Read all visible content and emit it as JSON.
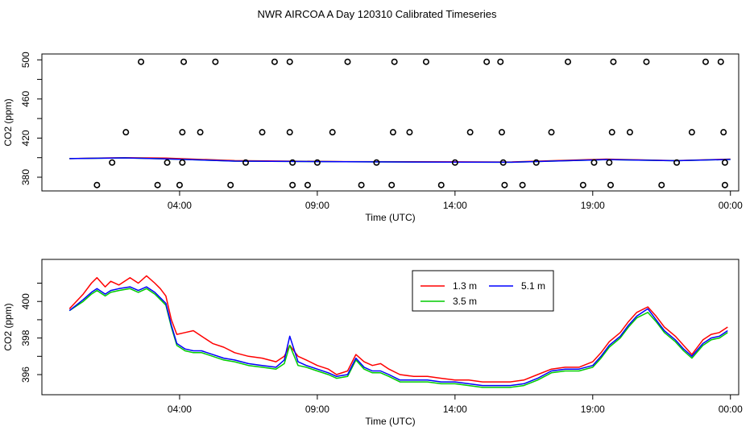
{
  "title": "NWR AIRCOA A  Day 120310  Calibrated Timeseries",
  "chart_data": [
    {
      "type": "scatter+line",
      "name": "top-panel",
      "xlabel": "Time (UTC)",
      "ylabel": "CO2 (ppm)",
      "xlim": [
        -1.0,
        24.3
      ],
      "ylim": [
        366,
        506
      ],
      "x_ticks": [
        4,
        9,
        14,
        19,
        24
      ],
      "x_tick_labels": [
        "04:00",
        "09:00",
        "14:00",
        "19:00",
        "00:00"
      ],
      "y_ticks": [
        380,
        400,
        420,
        440,
        460,
        480,
        500
      ],
      "y_tick_labels": [
        "380",
        "",
        "420",
        "",
        "460",
        "",
        "500"
      ],
      "points": [
        {
          "x": 1.0,
          "y": 372
        },
        {
          "x": 1.55,
          "y": 395
        },
        {
          "x": 2.05,
          "y": 426
        },
        {
          "x": 2.6,
          "y": 498
        },
        {
          "x": 3.2,
          "y": 372
        },
        {
          "x": 3.55,
          "y": 395
        },
        {
          "x": 4.0,
          "y": 372
        },
        {
          "x": 4.1,
          "y": 395
        },
        {
          "x": 4.1,
          "y": 426
        },
        {
          "x": 4.15,
          "y": 498
        },
        {
          "x": 4.75,
          "y": 426
        },
        {
          "x": 5.3,
          "y": 498
        },
        {
          "x": 5.85,
          "y": 372
        },
        {
          "x": 6.4,
          "y": 395
        },
        {
          "x": 7.0,
          "y": 426
        },
        {
          "x": 7.45,
          "y": 498
        },
        {
          "x": 8.0,
          "y": 426
        },
        {
          "x": 8.0,
          "y": 498
        },
        {
          "x": 8.1,
          "y": 395
        },
        {
          "x": 8.1,
          "y": 372
        },
        {
          "x": 8.65,
          "y": 372
        },
        {
          "x": 9.0,
          "y": 395
        },
        {
          "x": 9.55,
          "y": 426
        },
        {
          "x": 10.1,
          "y": 498
        },
        {
          "x": 10.6,
          "y": 372
        },
        {
          "x": 11.15,
          "y": 395
        },
        {
          "x": 11.7,
          "y": 372
        },
        {
          "x": 11.75,
          "y": 426
        },
        {
          "x": 11.8,
          "y": 498
        },
        {
          "x": 12.35,
          "y": 426
        },
        {
          "x": 12.95,
          "y": 498
        },
        {
          "x": 13.5,
          "y": 372
        },
        {
          "x": 14.0,
          "y": 395
        },
        {
          "x": 14.55,
          "y": 426
        },
        {
          "x": 15.15,
          "y": 498
        },
        {
          "x": 15.65,
          "y": 498
        },
        {
          "x": 15.7,
          "y": 426
        },
        {
          "x": 15.75,
          "y": 395
        },
        {
          "x": 15.8,
          "y": 372
        },
        {
          "x": 16.45,
          "y": 372
        },
        {
          "x": 16.95,
          "y": 395
        },
        {
          "x": 17.5,
          "y": 426
        },
        {
          "x": 18.1,
          "y": 498
        },
        {
          "x": 18.65,
          "y": 372
        },
        {
          "x": 19.05,
          "y": 395
        },
        {
          "x": 19.6,
          "y": 395
        },
        {
          "x": 19.65,
          "y": 372
        },
        {
          "x": 19.7,
          "y": 426
        },
        {
          "x": 19.75,
          "y": 498
        },
        {
          "x": 20.35,
          "y": 426
        },
        {
          "x": 20.95,
          "y": 498
        },
        {
          "x": 21.5,
          "y": 372
        },
        {
          "x": 22.05,
          "y": 395
        },
        {
          "x": 22.6,
          "y": 426
        },
        {
          "x": 23.1,
          "y": 498
        },
        {
          "x": 23.65,
          "y": 498
        },
        {
          "x": 23.75,
          "y": 426
        },
        {
          "x": 23.8,
          "y": 395
        },
        {
          "x": 23.8,
          "y": 372
        }
      ],
      "series": [
        {
          "name": "1.3 m",
          "color": "#ff0000",
          "x": [
            0,
            2,
            3.5,
            6,
            10,
            14,
            16,
            19.5,
            22,
            24
          ],
          "values": [
            399,
            400,
            399.5,
            397,
            396,
            395.7,
            395.6,
            398.5,
            397,
            398.5
          ]
        },
        {
          "name": "3.5 m",
          "color": "#00cc00",
          "x": [
            0,
            2,
            3.5,
            6,
            10,
            14,
            16,
            19.5,
            22,
            24
          ],
          "values": [
            399,
            399.8,
            398.8,
            396.5,
            395.8,
            395.4,
            395.3,
            398,
            396.9,
            398.2
          ]
        },
        {
          "name": "5.1 m",
          "color": "#0000ff",
          "x": [
            0,
            2,
            3.5,
            6,
            10,
            14,
            16,
            19.5,
            22,
            24
          ],
          "values": [
            399,
            399.8,
            398.8,
            396.5,
            395.8,
            395.4,
            395.3,
            398,
            396.9,
            398.2
          ]
        }
      ]
    },
    {
      "type": "line",
      "name": "bottom-panel",
      "xlabel": "Time (UTC)",
      "ylabel": "CO2 (ppm)",
      "xlim": [
        -1.0,
        24.3
      ],
      "ylim": [
        394.9,
        402.3
      ],
      "x_ticks": [
        4,
        9,
        14,
        19,
        24
      ],
      "x_tick_labels": [
        "04:00",
        "09:00",
        "14:00",
        "19:00",
        "00:00"
      ],
      "y_ticks": [
        396,
        397,
        398,
        399,
        400,
        401
      ],
      "y_tick_labels": [
        "396",
        "",
        "398",
        "",
        "400",
        ""
      ],
      "legend": {
        "position": "top-center",
        "entries": [
          "1.3 m",
          "3.5 m",
          "5.1 m"
        ]
      },
      "series": [
        {
          "name": "1.3 m",
          "color": "#ff0000",
          "x": [
            0,
            0.5,
            0.8,
            1.0,
            1.3,
            1.5,
            1.8,
            2.2,
            2.5,
            2.8,
            3.1,
            3.3,
            3.5,
            3.7,
            3.9,
            4.2,
            4.5,
            4.8,
            5.2,
            5.6,
            6.0,
            6.5,
            7.0,
            7.5,
            7.8,
            8.0,
            8.3,
            8.6,
            9.0,
            9.4,
            9.7,
            10.1,
            10.4,
            10.7,
            11.0,
            11.3,
            11.6,
            12.0,
            12.5,
            13.0,
            13.5,
            14.0,
            14.5,
            15.0,
            15.5,
            16.0,
            16.5,
            17.0,
            17.5,
            18.0,
            18.5,
            19.0,
            19.3,
            19.6,
            20.0,
            20.3,
            20.6,
            21.0,
            21.3,
            21.6,
            22.0,
            22.3,
            22.6,
            23.0,
            23.3,
            23.6,
            23.9
          ],
          "values": [
            399.6,
            400.4,
            401.0,
            401.3,
            400.8,
            401.1,
            400.9,
            401.3,
            401.0,
            401.4,
            401.0,
            400.7,
            400.3,
            399.0,
            398.2,
            398.3,
            398.4,
            398.1,
            397.7,
            397.5,
            397.2,
            397.0,
            396.9,
            396.7,
            397.0,
            397.6,
            397.0,
            396.8,
            396.5,
            396.3,
            396.0,
            396.2,
            397.1,
            396.7,
            396.5,
            396.6,
            396.3,
            396.0,
            395.9,
            395.9,
            395.8,
            395.7,
            395.7,
            395.6,
            395.6,
            395.6,
            395.7,
            396.0,
            396.3,
            396.4,
            396.4,
            396.7,
            397.2,
            397.8,
            398.3,
            398.9,
            399.4,
            399.7,
            399.2,
            398.6,
            398.1,
            397.6,
            397.1,
            397.9,
            398.2,
            398.3,
            398.6
          ]
        },
        {
          "name": "3.5 m",
          "color": "#00cc00",
          "x": [
            0,
            0.5,
            0.8,
            1.0,
            1.3,
            1.5,
            1.8,
            2.2,
            2.5,
            2.8,
            3.1,
            3.3,
            3.5,
            3.7,
            3.9,
            4.2,
            4.5,
            4.8,
            5.2,
            5.6,
            6.0,
            6.5,
            7.0,
            7.5,
            7.8,
            8.0,
            8.3,
            8.6,
            9.0,
            9.4,
            9.7,
            10.1,
            10.4,
            10.7,
            11.0,
            11.3,
            11.6,
            12.0,
            12.5,
            13.0,
            13.5,
            14.0,
            14.5,
            15.0,
            15.5,
            16.0,
            16.5,
            17.0,
            17.5,
            18.0,
            18.5,
            19.0,
            19.3,
            19.6,
            20.0,
            20.3,
            20.6,
            21.0,
            21.3,
            21.6,
            22.0,
            22.3,
            22.6,
            23.0,
            23.3,
            23.6,
            23.9
          ],
          "values": [
            399.5,
            400.0,
            400.4,
            400.6,
            400.3,
            400.5,
            400.6,
            400.7,
            400.5,
            400.7,
            400.4,
            400.1,
            399.8,
            398.6,
            397.6,
            397.3,
            397.2,
            397.2,
            397.0,
            396.8,
            396.7,
            396.5,
            396.4,
            396.3,
            396.6,
            397.6,
            396.5,
            396.4,
            396.2,
            396.0,
            395.8,
            395.9,
            396.8,
            396.3,
            396.1,
            396.1,
            395.9,
            395.6,
            395.6,
            395.6,
            395.5,
            395.5,
            395.4,
            395.3,
            395.3,
            395.3,
            395.4,
            395.7,
            396.1,
            396.2,
            396.2,
            396.4,
            396.9,
            397.5,
            398.0,
            398.6,
            399.1,
            399.4,
            398.9,
            398.3,
            397.8,
            397.3,
            396.9,
            397.6,
            397.9,
            398.0,
            398.3
          ]
        },
        {
          "name": "5.1 m",
          "color": "#0000ff",
          "x": [
            0,
            0.5,
            0.8,
            1.0,
            1.3,
            1.5,
            1.8,
            2.2,
            2.5,
            2.8,
            3.1,
            3.3,
            3.5,
            3.7,
            3.9,
            4.2,
            4.5,
            4.8,
            5.2,
            5.6,
            6.0,
            6.5,
            7.0,
            7.5,
            7.8,
            8.0,
            8.3,
            8.6,
            9.0,
            9.4,
            9.7,
            10.1,
            10.4,
            10.7,
            11.0,
            11.3,
            11.6,
            12.0,
            12.5,
            13.0,
            13.5,
            14.0,
            14.5,
            15.0,
            15.5,
            16.0,
            16.5,
            17.0,
            17.5,
            18.0,
            18.5,
            19.0,
            19.3,
            19.6,
            20.0,
            20.3,
            20.6,
            21.0,
            21.3,
            21.6,
            22.0,
            22.3,
            22.6,
            23.0,
            23.3,
            23.6,
            23.9
          ],
          "values": [
            399.5,
            400.1,
            400.5,
            400.7,
            400.4,
            400.6,
            400.7,
            400.8,
            400.6,
            400.8,
            400.5,
            400.2,
            399.9,
            398.7,
            397.7,
            397.4,
            397.3,
            397.3,
            397.1,
            396.9,
            396.8,
            396.6,
            396.5,
            396.4,
            396.8,
            398.1,
            396.7,
            396.5,
            396.3,
            396.1,
            395.9,
            396.0,
            396.9,
            396.4,
            396.2,
            396.2,
            396.0,
            395.7,
            395.7,
            395.7,
            395.6,
            395.6,
            395.5,
            395.4,
            395.4,
            395.4,
            395.5,
            395.8,
            396.2,
            396.3,
            396.3,
            396.5,
            397.0,
            397.6,
            398.1,
            398.7,
            399.2,
            399.6,
            399.0,
            398.4,
            397.9,
            397.4,
            397.0,
            397.7,
            398.0,
            398.1,
            398.4
          ]
        }
      ]
    }
  ]
}
